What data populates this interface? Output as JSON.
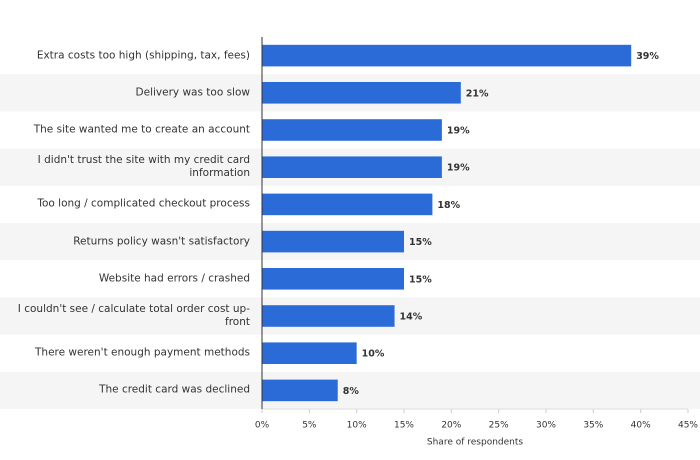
{
  "chart_data": {
    "type": "bar",
    "orientation": "horizontal",
    "categories": [
      "Extra costs too high (shipping, tax, fees)",
      "Delivery was too slow",
      "The site wanted me to create an account",
      "I didn't trust the site with my credit card information",
      "Too long / complicated checkout process",
      "Returns policy wasn't satisfactory",
      "Website had errors / crashed",
      "I couldn't see / calculate total order cost up-front",
      "There weren't enough payment methods",
      "The credit card was declined"
    ],
    "values": [
      39,
      21,
      19,
      19,
      18,
      15,
      15,
      14,
      10,
      8
    ],
    "value_labels": [
      "39%",
      "21%",
      "19%",
      "19%",
      "18%",
      "15%",
      "15%",
      "14%",
      "10%",
      "8%"
    ],
    "color": "#2a6bd8",
    "xlabel": "Share of respondents",
    "xlim": [
      0,
      45
    ],
    "xticks": [
      {
        "value": 0,
        "label": "0%"
      },
      {
        "value": 5,
        "label": "5%"
      },
      {
        "value": 10,
        "label": "10%"
      },
      {
        "value": 15,
        "label": "15%"
      },
      {
        "value": 20,
        "label": "20%"
      },
      {
        "value": 25,
        "label": "25%"
      },
      {
        "value": 30,
        "label": "30%"
      },
      {
        "value": 35,
        "label": "35%"
      },
      {
        "value": 40,
        "label": "40%"
      },
      {
        "value": 45,
        "label": "45%"
      }
    ],
    "grid": false
  }
}
